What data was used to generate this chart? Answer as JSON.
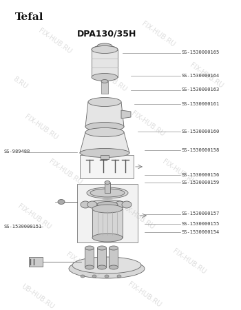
{
  "title": "DPA130/35H",
  "brand": "Tefal",
  "bg_color": "#ffffff",
  "line_color": "#888888",
  "text_color": "#333333",
  "label_fontsize": 5.0,
  "title_fontsize": 9,
  "brand_fontsize": 11,
  "right_labels": [
    [
      "SS-1530000165",
      0.83
    ],
    [
      "SS-1530000164",
      0.755
    ],
    [
      "SS-1530000163",
      0.71
    ],
    [
      "SS-1530000161",
      0.665
    ],
    [
      "SS-1530000160",
      0.575
    ],
    [
      "SS-1530000158",
      0.515
    ],
    [
      "SS-1530000156",
      0.435
    ],
    [
      "SS-1530000159",
      0.412
    ],
    [
      "SS-1530000157",
      0.31
    ],
    [
      "SS-1530000155",
      0.278
    ],
    [
      "SS-1530000154",
      0.252
    ]
  ],
  "left_labels": [
    [
      "SS-989488",
      0.51
    ],
    [
      "SS-1530000151",
      0.268
    ]
  ]
}
